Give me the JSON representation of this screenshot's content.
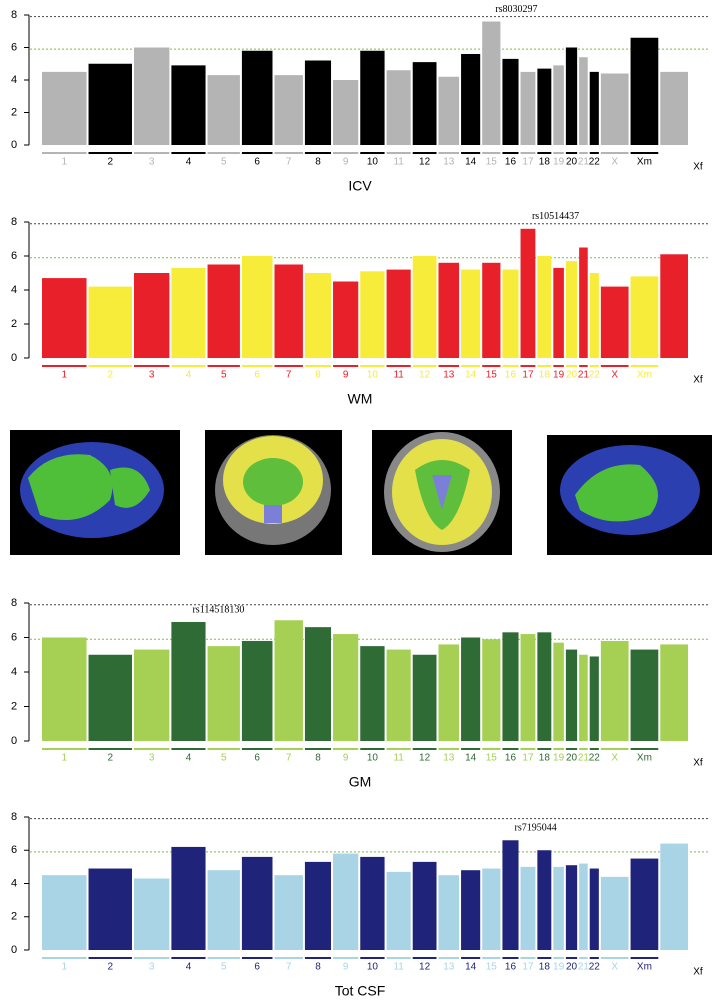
{
  "chart_data": [
    {
      "type": "manhattan",
      "title": "ICV",
      "categories": [
        "1",
        "2",
        "3",
        "4",
        "5",
        "6",
        "7",
        "8",
        "9",
        "10",
        "11",
        "12",
        "13",
        "14",
        "15",
        "16",
        "17",
        "18",
        "19",
        "20",
        "21",
        "22",
        "X",
        "Xm",
        "Xf"
      ],
      "values": [
        4.5,
        5.0,
        6.0,
        4.9,
        4.3,
        5.8,
        4.3,
        5.2,
        4.0,
        5.8,
        4.6,
        5.1,
        4.2,
        5.6,
        7.6,
        5.3,
        4.5,
        4.7,
        4.9,
        6.0,
        5.4,
        4.5,
        4.4,
        6.6,
        4.5
      ],
      "colors": [
        "#b4b4b4",
        "#000000"
      ],
      "ylim": [
        0,
        8
      ],
      "yticks": [
        0,
        2,
        4,
        6,
        8
      ],
      "threshold_lines": [
        {
          "value": 5.9,
          "color": "#7ac143"
        },
        {
          "value": 7.9,
          "color": "#444444"
        }
      ],
      "annotation": {
        "text": "rs8030297",
        "category": "15"
      }
    },
    {
      "type": "manhattan",
      "title": "WM",
      "categories": [
        "1",
        "2",
        "3",
        "4",
        "5",
        "6",
        "7",
        "8",
        "9",
        "10",
        "11",
        "12",
        "13",
        "14",
        "15",
        "16",
        "17",
        "18",
        "19",
        "20",
        "21",
        "22",
        "X",
        "Xm",
        "Xf"
      ],
      "values": [
        4.7,
        4.2,
        5.0,
        5.3,
        5.5,
        6.0,
        5.5,
        5.0,
        4.5,
        5.1,
        5.2,
        6.0,
        5.6,
        5.2,
        5.6,
        5.2,
        7.6,
        6.0,
        5.3,
        5.7,
        6.5,
        5.0,
        4.2,
        4.8,
        6.1
      ],
      "colors": [
        "#e8202a",
        "#f7ec3a"
      ],
      "ylim": [
        0,
        8
      ],
      "yticks": [
        0,
        2,
        4,
        6,
        8
      ],
      "threshold_lines": [
        {
          "value": 5.9,
          "color": "#7ac143"
        },
        {
          "value": 7.9,
          "color": "#444444"
        }
      ],
      "annotation": {
        "text": "rs10514437",
        "category": "17"
      }
    },
    {
      "type": "manhattan",
      "title": "GM",
      "categories": [
        "1",
        "2",
        "3",
        "4",
        "5",
        "6",
        "7",
        "8",
        "9",
        "10",
        "11",
        "12",
        "13",
        "14",
        "15",
        "16",
        "17",
        "18",
        "19",
        "20",
        "21",
        "22",
        "X",
        "Xm",
        "Xf"
      ],
      "values": [
        6.0,
        5.0,
        5.3,
        6.9,
        5.5,
        5.8,
        7.0,
        6.6,
        6.2,
        5.5,
        5.3,
        5.0,
        5.6,
        6.0,
        5.9,
        6.3,
        6.2,
        6.3,
        5.7,
        5.3,
        5.0,
        4.9,
        5.8,
        5.3,
        5.6
      ],
      "colors": [
        "#a6d054",
        "#2e6b35"
      ],
      "ylim": [
        0,
        8
      ],
      "yticks": [
        0,
        2,
        4,
        6,
        8
      ],
      "threshold_lines": [
        {
          "value": 5.9,
          "color": "#7ac143"
        },
        {
          "value": 7.9,
          "color": "#444444"
        }
      ],
      "annotation": {
        "text": "rs114518130",
        "category": "4"
      }
    },
    {
      "type": "manhattan",
      "title": "Tot  CSF",
      "categories": [
        "1",
        "2",
        "3",
        "4",
        "5",
        "6",
        "7",
        "8",
        "9",
        "10",
        "11",
        "12",
        "13",
        "14",
        "15",
        "16",
        "17",
        "18",
        "19",
        "20",
        "21",
        "22",
        "X",
        "Xm",
        "Xf"
      ],
      "values": [
        4.5,
        4.9,
        4.3,
        6.2,
        4.8,
        5.6,
        4.5,
        5.3,
        5.8,
        5.6,
        4.7,
        5.3,
        4.5,
        4.8,
        4.9,
        6.6,
        5.0,
        6.0,
        5.0,
        5.1,
        5.2,
        4.9,
        4.4,
        5.5,
        6.4
      ],
      "colors": [
        "#a9d4e6",
        "#1f237a"
      ],
      "ylim": [
        0,
        8
      ],
      "yticks": [
        0,
        2,
        4,
        6,
        8
      ],
      "threshold_lines": [
        {
          "value": 5.9,
          "color": "#7ac143"
        },
        {
          "value": 7.9,
          "color": "#444444"
        }
      ],
      "annotation": {
        "text": "rs7195044",
        "category": "16"
      }
    }
  ]
}
